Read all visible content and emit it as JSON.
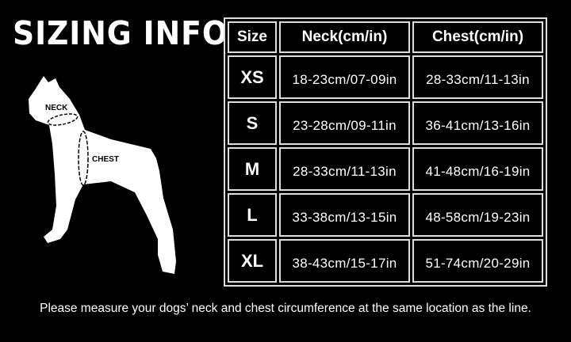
{
  "title": "SIZING INFO",
  "diagram": {
    "neck_label": "NECK",
    "chest_label": "CHEST"
  },
  "table": {
    "headers": [
      "Size",
      "Neck(cm/in)",
      "Chest(cm/in)"
    ],
    "rows": [
      {
        "size": "XS",
        "neck": "18-23cm/07-09in",
        "chest": "28-33cm/11-13in"
      },
      {
        "size": "S",
        "neck": "23-28cm/09-11in",
        "chest": "36-41cm/13-16in"
      },
      {
        "size": "M",
        "neck": "28-33cm/11-13in",
        "chest": "41-48cm/16-19in"
      },
      {
        "size": "L",
        "neck": "33-38cm/13-15in",
        "chest": "48-58cm/19-23in"
      },
      {
        "size": "XL",
        "neck": "38-43cm/15-17in",
        "chest": "51-74cm/20-29in"
      }
    ]
  },
  "note": "Please measure your dogs’  neck and chest circumference at the same location as the line.",
  "colors": {
    "background": "#000000",
    "foreground": "#ffffff"
  }
}
